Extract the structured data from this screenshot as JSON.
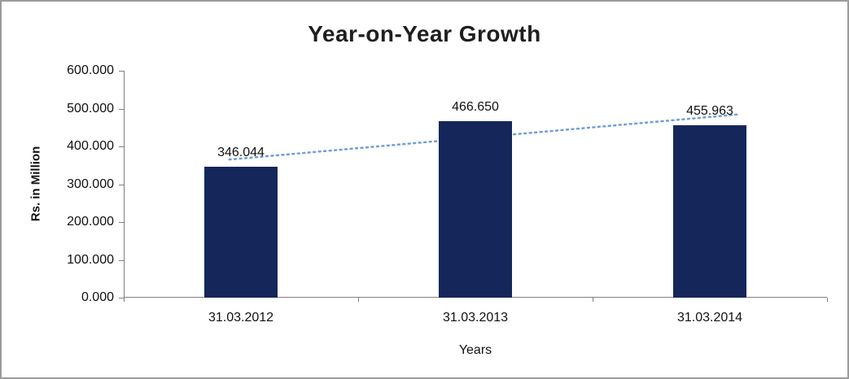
{
  "chart_data": {
    "type": "bar",
    "title": "Year-on-Year Growth",
    "categories": [
      "31.03.2012",
      "31.03.2013",
      "31.03.2014"
    ],
    "values": [
      346.044,
      466.65,
      455.963
    ],
    "value_labels": [
      "346.044",
      "466.650",
      "455.963"
    ],
    "xlabel": "Years",
    "ylabel": "Rs. in Million",
    "ylim": [
      0,
      600
    ],
    "ytick_step": 100,
    "ytick_labels": [
      "0.000",
      "100.000",
      "200.000",
      "300.000",
      "400.000",
      "500.000",
      "600.000"
    ],
    "bar_color": "#15265B",
    "trendline": {
      "present": true,
      "type": "linear",
      "style": "dotted",
      "color": "#6f9fd8"
    },
    "grid": false,
    "legend": false
  }
}
